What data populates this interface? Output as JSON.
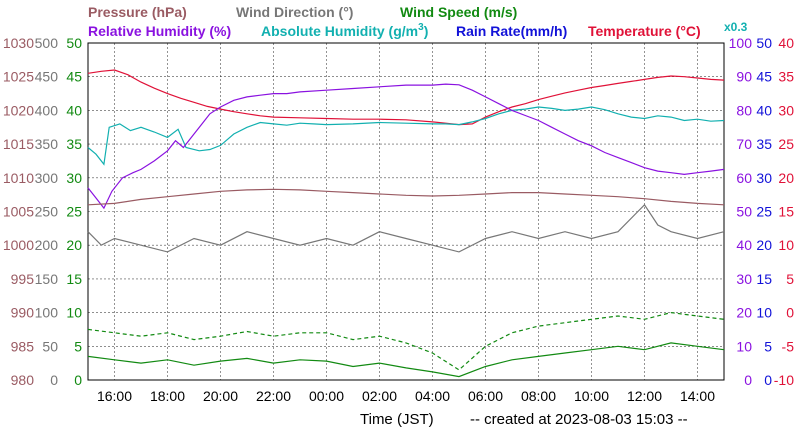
{
  "chart_data": {
    "type": "line",
    "legend": [
      {
        "key": "pressure",
        "text": "Pressure (hPa)",
        "color": "#9a5b63"
      },
      {
        "key": "wind_direction",
        "text": "Wind Direction (°)",
        "color": "#777777"
      },
      {
        "key": "wind_speed",
        "text": "Wind Speed (m/s)",
        "color": "#128a12"
      },
      {
        "key": "humidity",
        "text": "Relative Humidity (%)",
        "color": "#8a12e0"
      },
      {
        "key": "abs_humidity",
        "text": "Absolute Humidity (g/m",
        "sup": "3",
        "close": ")",
        "color": "#12b0b0"
      },
      {
        "key": "rain",
        "text": "Rain Rate(mm/h)",
        "color": "#1212d8"
      },
      {
        "key": "temperature",
        "text": "Temperature (°C)",
        "color": "#e01238"
      },
      {
        "key": "abs_note",
        "text": "x0.3",
        "color": "#12b0b0"
      }
    ],
    "x_ticks": [
      "16:00",
      "18:00",
      "20:00",
      "22:00",
      "00:00",
      "02:00",
      "04:00",
      "06:00",
      "08:00",
      "10:00",
      "12:00",
      "14:00"
    ],
    "xlabel": "Time (JST)",
    "footer": "-- created at 2023-08-03 15:03 --",
    "axes": {
      "pressure": {
        "ticks": [
          "1030",
          "1025",
          "1020",
          "1015",
          "1010",
          "1005",
          "1000",
          "995",
          "990",
          "985",
          "980"
        ],
        "range": [
          980,
          1030
        ],
        "color": "#9a5b63"
      },
      "wind_direction": {
        "ticks": [
          "500",
          "450",
          "400",
          "350",
          "300",
          "250",
          "200",
          "150",
          "100",
          "50",
          "0"
        ],
        "range": [
          0,
          500
        ],
        "color": "#777777"
      },
      "wind_speed": {
        "ticks": [
          "50",
          "45",
          "40",
          "35",
          "30",
          "25",
          "20",
          "15",
          "10",
          "5",
          "0"
        ],
        "range": [
          0,
          50
        ],
        "color": "#128a12"
      },
      "humidity": {
        "ticks": [
          "100",
          "90",
          "80",
          "70",
          "60",
          "50",
          "40",
          "30",
          "20",
          "10",
          "0"
        ],
        "range": [
          0,
          100
        ],
        "color": "#8a12e0"
      },
      "rain": {
        "ticks": [
          "50",
          "45",
          "40",
          "35",
          "30",
          "25",
          "20",
          "15",
          "10",
          "5",
          "0"
        ],
        "range": [
          0,
          50
        ],
        "color": "#1212d8"
      },
      "temperature": {
        "ticks": [
          "40",
          "35",
          "30",
          "25",
          "20",
          "15",
          "10",
          "5",
          "0",
          "-5",
          "-10"
        ],
        "range": [
          -10,
          40
        ],
        "color": "#e01238"
      }
    },
    "time_range_hours": [
      15.0,
      15.0
    ],
    "series": [
      {
        "key": "temperature",
        "color": "#e01238",
        "points": [
          [
            15.0,
            35.5
          ],
          [
            15.5,
            35.8
          ],
          [
            16.0,
            36.0
          ],
          [
            16.5,
            35.3
          ],
          [
            17.0,
            34.2
          ],
          [
            17.5,
            33.3
          ],
          [
            18.0,
            32.5
          ],
          [
            18.5,
            31.8
          ],
          [
            19.0,
            31.2
          ],
          [
            19.5,
            30.6
          ],
          [
            20.0,
            30.2
          ],
          [
            20.5,
            29.8
          ],
          [
            21.0,
            29.5
          ],
          [
            21.5,
            29.2
          ],
          [
            22.0,
            29.0
          ],
          [
            23.0,
            28.9
          ],
          [
            0.0,
            28.8
          ],
          [
            1.0,
            28.7
          ],
          [
            2.0,
            28.7
          ],
          [
            3.0,
            28.6
          ],
          [
            4.0,
            28.3
          ],
          [
            4.5,
            28.1
          ],
          [
            5.0,
            27.9
          ],
          [
            5.5,
            28.0
          ],
          [
            6.0,
            29.0
          ],
          [
            6.5,
            29.8
          ],
          [
            7.0,
            30.5
          ],
          [
            7.5,
            31.0
          ],
          [
            8.0,
            31.6
          ],
          [
            8.5,
            32.1
          ],
          [
            9.0,
            32.6
          ],
          [
            9.5,
            33.0
          ],
          [
            10.0,
            33.4
          ],
          [
            10.5,
            33.7
          ],
          [
            11.0,
            34.0
          ],
          [
            11.5,
            34.3
          ],
          [
            12.0,
            34.6
          ],
          [
            12.5,
            34.9
          ],
          [
            13.0,
            35.1
          ],
          [
            13.5,
            35.0
          ],
          [
            14.0,
            34.8
          ],
          [
            14.5,
            34.6
          ],
          [
            15.0,
            34.5
          ]
        ]
      },
      {
        "key": "abs_humidity",
        "color": "#12b0b0",
        "points": [
          [
            15.0,
            34.5
          ],
          [
            15.3,
            33.5
          ],
          [
            15.6,
            32.0
          ],
          [
            15.8,
            37.5
          ],
          [
            16.2,
            38.0
          ],
          [
            16.6,
            37.0
          ],
          [
            17.0,
            37.5
          ],
          [
            17.5,
            36.8
          ],
          [
            18.0,
            36.0
          ],
          [
            18.4,
            37.2
          ],
          [
            18.7,
            34.5
          ],
          [
            19.2,
            34.0
          ],
          [
            19.6,
            34.2
          ],
          [
            20.0,
            34.8
          ],
          [
            20.5,
            36.5
          ],
          [
            21.0,
            37.5
          ],
          [
            21.5,
            38.2
          ],
          [
            22.0,
            38.0
          ],
          [
            22.5,
            37.8
          ],
          [
            23.0,
            38.1
          ],
          [
            23.5,
            38.0
          ],
          [
            0.0,
            37.9
          ],
          [
            1.0,
            38.0
          ],
          [
            2.0,
            38.2
          ],
          [
            3.0,
            38.1
          ],
          [
            4.0,
            38.0
          ],
          [
            4.5,
            38.0
          ],
          [
            5.0,
            37.9
          ],
          [
            5.5,
            38.3
          ],
          [
            6.0,
            38.8
          ],
          [
            6.5,
            39.5
          ],
          [
            7.0,
            40.0
          ],
          [
            7.5,
            40.2
          ],
          [
            8.0,
            40.5
          ],
          [
            8.5,
            40.3
          ],
          [
            9.0,
            40.0
          ],
          [
            9.5,
            40.2
          ],
          [
            10.0,
            40.5
          ],
          [
            10.5,
            40.1
          ],
          [
            11.0,
            39.5
          ],
          [
            11.5,
            39.0
          ],
          [
            12.0,
            38.8
          ],
          [
            12.5,
            39.2
          ],
          [
            13.0,
            39.0
          ],
          [
            13.5,
            38.5
          ],
          [
            14.0,
            38.7
          ],
          [
            14.5,
            38.4
          ],
          [
            15.0,
            38.5
          ]
        ]
      },
      {
        "key": "humidity",
        "color": "#8a12e0",
        "points": [
          [
            15.0,
            57.0
          ],
          [
            15.3,
            54.0
          ],
          [
            15.6,
            51.0
          ],
          [
            15.9,
            56.0
          ],
          [
            16.3,
            60.0
          ],
          [
            16.7,
            61.5
          ],
          [
            17.0,
            62.5
          ],
          [
            17.5,
            65.0
          ],
          [
            18.0,
            68.0
          ],
          [
            18.3,
            71.0
          ],
          [
            18.6,
            69.0
          ],
          [
            19.0,
            73.0
          ],
          [
            19.3,
            76.0
          ],
          [
            19.6,
            79.0
          ],
          [
            20.0,
            81.0
          ],
          [
            20.5,
            83.0
          ],
          [
            21.0,
            84.0
          ],
          [
            21.5,
            84.5
          ],
          [
            22.0,
            85.0
          ],
          [
            22.5,
            85.0
          ],
          [
            23.0,
            85.5
          ],
          [
            0.0,
            86.0
          ],
          [
            1.0,
            86.5
          ],
          [
            2.0,
            87.0
          ],
          [
            3.0,
            87.5
          ],
          [
            4.0,
            87.5
          ],
          [
            4.5,
            87.8
          ],
          [
            5.0,
            87.6
          ],
          [
            5.5,
            86.0
          ],
          [
            6.0,
            84.0
          ],
          [
            6.5,
            82.0
          ],
          [
            7.0,
            80.0
          ],
          [
            7.5,
            78.5
          ],
          [
            8.0,
            77.0
          ],
          [
            8.5,
            75.0
          ],
          [
            9.0,
            73.0
          ],
          [
            9.5,
            71.0
          ],
          [
            10.0,
            69.5
          ],
          [
            10.5,
            67.5
          ],
          [
            11.0,
            66.0
          ],
          [
            11.5,
            64.5
          ],
          [
            12.0,
            63.0
          ],
          [
            12.5,
            62.0
          ],
          [
            13.0,
            61.5
          ],
          [
            13.5,
            61.0
          ],
          [
            14.0,
            61.5
          ],
          [
            14.5,
            62.0
          ],
          [
            15.0,
            62.5
          ]
        ]
      },
      {
        "key": "pressure",
        "color": "#9a5b63",
        "points": [
          [
            15.0,
            1006.0
          ],
          [
            16.0,
            1006.2
          ],
          [
            17.0,
            1006.8
          ],
          [
            18.0,
            1007.2
          ],
          [
            19.0,
            1007.6
          ],
          [
            20.0,
            1008.0
          ],
          [
            21.0,
            1008.2
          ],
          [
            22.0,
            1008.3
          ],
          [
            23.0,
            1008.2
          ],
          [
            0.0,
            1008.0
          ],
          [
            1.0,
            1007.8
          ],
          [
            2.0,
            1007.6
          ],
          [
            3.0,
            1007.4
          ],
          [
            4.0,
            1007.3
          ],
          [
            5.0,
            1007.4
          ],
          [
            6.0,
            1007.6
          ],
          [
            7.0,
            1007.8
          ],
          [
            8.0,
            1007.8
          ],
          [
            9.0,
            1007.6
          ],
          [
            10.0,
            1007.4
          ],
          [
            11.0,
            1007.2
          ],
          [
            12.0,
            1006.9
          ],
          [
            13.0,
            1006.5
          ],
          [
            14.0,
            1006.2
          ],
          [
            15.0,
            1006.0
          ]
        ]
      },
      {
        "key": "wind_direction",
        "color": "#777777",
        "points": [
          [
            15.0,
            220
          ],
          [
            15.5,
            200
          ],
          [
            16.0,
            210
          ],
          [
            17.0,
            200
          ],
          [
            18.0,
            190
          ],
          [
            19.0,
            210
          ],
          [
            20.0,
            200
          ],
          [
            21.0,
            220
          ],
          [
            22.0,
            210
          ],
          [
            23.0,
            200
          ],
          [
            0.0,
            210
          ],
          [
            1.0,
            200
          ],
          [
            2.0,
            220
          ],
          [
            3.0,
            210
          ],
          [
            4.0,
            200
          ],
          [
            5.0,
            190
          ],
          [
            6.0,
            210
          ],
          [
            7.0,
            220
          ],
          [
            8.0,
            210
          ],
          [
            9.0,
            220
          ],
          [
            10.0,
            210
          ],
          [
            11.0,
            220
          ],
          [
            12.0,
            260
          ],
          [
            12.5,
            230
          ],
          [
            13.0,
            220
          ],
          [
            14.0,
            210
          ],
          [
            15.0,
            220
          ]
        ]
      },
      {
        "key": "wind_speed",
        "color": "#128a12",
        "points": [
          [
            15.0,
            3.5
          ],
          [
            16.0,
            3.0
          ],
          [
            17.0,
            2.5
          ],
          [
            18.0,
            3.0
          ],
          [
            19.0,
            2.2
          ],
          [
            20.0,
            2.8
          ],
          [
            21.0,
            3.2
          ],
          [
            22.0,
            2.5
          ],
          [
            23.0,
            3.0
          ],
          [
            0.0,
            2.8
          ],
          [
            1.0,
            2.0
          ],
          [
            2.0,
            2.5
          ],
          [
            3.0,
            1.8
          ],
          [
            4.0,
            1.2
          ],
          [
            5.0,
            0.5
          ],
          [
            6.0,
            2.0
          ],
          [
            7.0,
            3.0
          ],
          [
            8.0,
            3.5
          ],
          [
            9.0,
            4.0
          ],
          [
            10.0,
            4.5
          ],
          [
            11.0,
            5.0
          ],
          [
            12.0,
            4.5
          ],
          [
            13.0,
            5.5
          ],
          [
            14.0,
            5.0
          ],
          [
            15.0,
            4.5
          ]
        ]
      },
      {
        "key": "wind_speed_gust",
        "color": "#128a12",
        "dashed": true,
        "points": [
          [
            15.0,
            7.5
          ],
          [
            16.0,
            7.0
          ],
          [
            17.0,
            6.5
          ],
          [
            18.0,
            7.0
          ],
          [
            19.0,
            6.0
          ],
          [
            20.0,
            6.5
          ],
          [
            21.0,
            7.2
          ],
          [
            22.0,
            6.5
          ],
          [
            23.0,
            7.0
          ],
          [
            0.0,
            7.0
          ],
          [
            1.0,
            6.0
          ],
          [
            2.0,
            6.5
          ],
          [
            3.0,
            5.5
          ],
          [
            4.0,
            4.0
          ],
          [
            5.0,
            1.5
          ],
          [
            6.0,
            5.0
          ],
          [
            7.0,
            7.0
          ],
          [
            8.0,
            8.0
          ],
          [
            9.0,
            8.5
          ],
          [
            10.0,
            9.0
          ],
          [
            11.0,
            9.5
          ],
          [
            12.0,
            9.0
          ],
          [
            13.0,
            10.0
          ],
          [
            14.0,
            9.5
          ],
          [
            15.0,
            9.0
          ]
        ]
      }
    ]
  }
}
